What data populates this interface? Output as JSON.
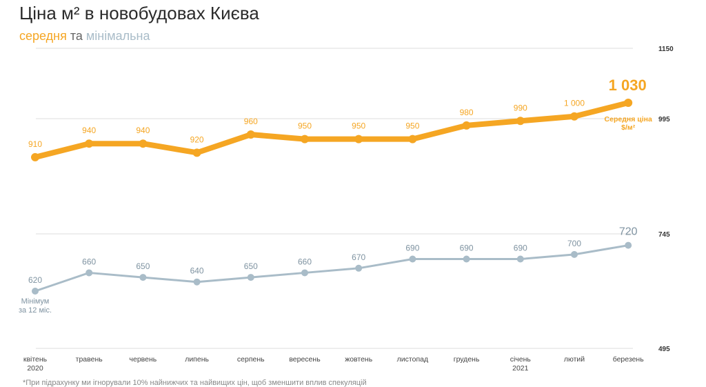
{
  "title": "Ціна м² в новобудовах Києва",
  "subtitle": {
    "avg": "середня",
    "and": "та",
    "min": "мінімальна"
  },
  "footnote": "*При підрахунку ми ігнорували 10% найнижчих та найвищих цін, щоб зменшити вплив спекуляцій",
  "colors": {
    "avg": "#f5a623",
    "min": "#a9bcc8",
    "min_text": "#7f93a1",
    "grid": "#dcdcdc"
  },
  "chart_data": {
    "type": "line",
    "title": "Ціна м² в новобудовах Києва",
    "categories": [
      "квітень\n2020",
      "травень",
      "червень",
      "липень",
      "серпень",
      "вересень",
      "жовтень",
      "листопад",
      "грудень",
      "січень\n2021",
      "лютий",
      "березень"
    ],
    "y_ticks": [
      1150,
      995,
      745,
      495
    ],
    "grid": true,
    "series": [
      {
        "key": "avg",
        "values": [
          910,
          940,
          940,
          920,
          960,
          950,
          950,
          950,
          980,
          990,
          1000,
          1030
        ],
        "labels": [
          "910",
          "940",
          "940",
          "920",
          "960",
          "950",
          "950",
          "950",
          "980",
          "990",
          "1 000",
          "1 030"
        ],
        "end_annotation": "Середня ціна\n$/м²"
      },
      {
        "key": "min",
        "values": [
          620,
          660,
          650,
          640,
          650,
          660,
          670,
          690,
          690,
          690,
          700,
          720
        ],
        "labels": [
          "620",
          "660",
          "650",
          "640",
          "650",
          "660",
          "670",
          "690",
          "690",
          "690",
          "700",
          "720"
        ],
        "start_annotation": "Мінімум\nза 12 міс."
      }
    ]
  }
}
